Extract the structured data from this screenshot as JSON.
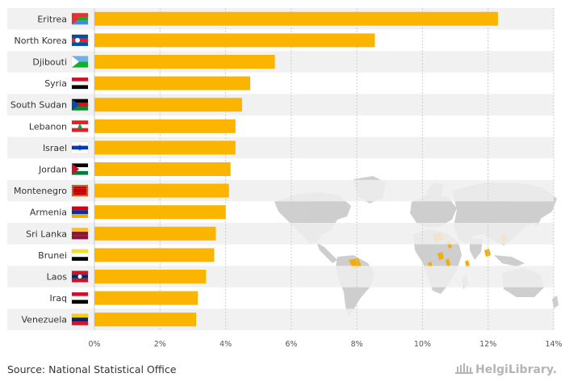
{
  "chart_data": {
    "type": "bar",
    "orientation": "horizontal",
    "categories": [
      "Eritrea",
      "North Korea",
      "Djibouti",
      "Syria",
      "South Sudan",
      "Lebanon",
      "Israel",
      "Jordan",
      "Montenegro",
      "Armenia",
      "Sri Lanka",
      "Brunei",
      "Laos",
      "Iraq",
      "Venezuela"
    ],
    "values": [
      12.3,
      8.55,
      5.5,
      4.75,
      4.5,
      4.3,
      4.3,
      4.15,
      4.1,
      4.0,
      3.7,
      3.65,
      3.4,
      3.15,
      3.1
    ],
    "xlim": [
      0,
      14
    ],
    "xticks": [
      0,
      2,
      4,
      6,
      8,
      10,
      12,
      14
    ],
    "xtick_labels": [
      "0%",
      "2%",
      "4%",
      "6%",
      "8%",
      "10%",
      "12%",
      "14%"
    ],
    "title": "",
    "xlabel": "",
    "ylabel": "",
    "grid": true,
    "colors": {
      "bar": "#FBB400",
      "band": "#EEEEEE",
      "grid": "#CCCCCC",
      "map_land": "#CCCCCC",
      "map_highlight": "#F2A900"
    },
    "flag_icons": [
      "eritrea-flag",
      "north-korea-flag",
      "djibouti-flag",
      "syria-flag",
      "south-sudan-flag",
      "lebanon-flag",
      "israel-flag",
      "jordan-flag",
      "montenegro-flag",
      "armenia-flag",
      "sri-lanka-flag",
      "brunei-flag",
      "laos-flag",
      "iraq-flag",
      "venezuela-flag"
    ]
  },
  "footer": {
    "source": "Source: National Statistical Office",
    "brand": "HelgiLibrary."
  }
}
